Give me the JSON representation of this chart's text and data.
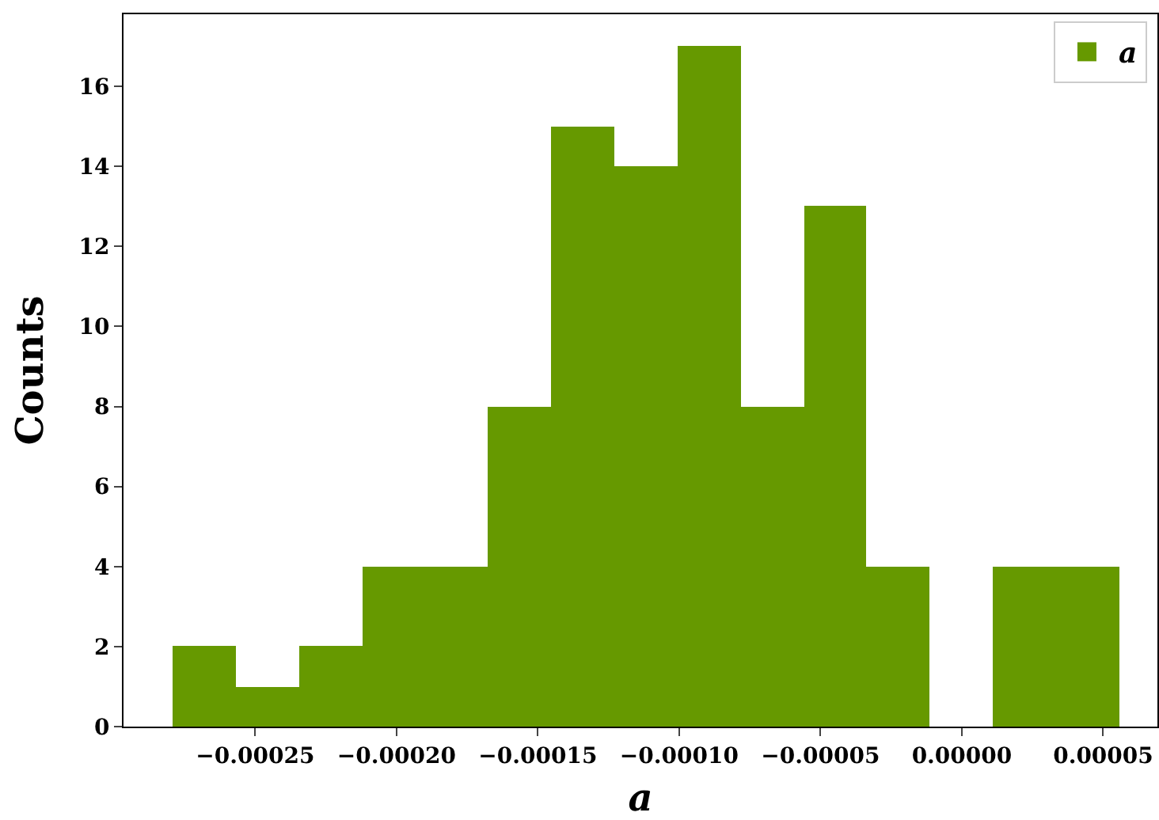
{
  "chart_data": {
    "type": "histogram",
    "xlabel": "a",
    "ylabel": "Counts",
    "bins": [
      -0.000279,
      -0.0002567,
      -0.0002344,
      -0.0002121,
      -0.0001898,
      -0.0001675,
      -0.0001452,
      -0.0001229,
      -0.0001006,
      -7.83e-05,
      -5.6e-05,
      -3.37e-05,
      -1.14e-05,
      1.09e-05,
      3.32e-05,
      5.55e-05
    ],
    "series": [
      {
        "name": "a",
        "color": "#669900",
        "values": [
          2,
          1,
          2,
          4,
          4,
          8,
          15,
          14,
          17,
          8,
          13,
          4,
          0,
          4,
          4
        ]
      }
    ],
    "xlim": [
      -0.0002966,
      6.92e-05
    ],
    "ylim": [
      0,
      17.8
    ],
    "xticks": [
      {
        "value": -0.00025,
        "label": "−0.00025"
      },
      {
        "value": -0.0002,
        "label": "−0.00020"
      },
      {
        "value": -0.00015,
        "label": "−0.00015"
      },
      {
        "value": -0.0001,
        "label": "−0.00010"
      },
      {
        "value": -5e-05,
        "label": "−0.00005"
      },
      {
        "value": 0,
        "label": "0.00000"
      },
      {
        "value": 5e-05,
        "label": "0.00005"
      }
    ],
    "yticks": [
      0,
      2,
      4,
      6,
      8,
      10,
      12,
      14,
      16
    ],
    "legend": "top right"
  }
}
